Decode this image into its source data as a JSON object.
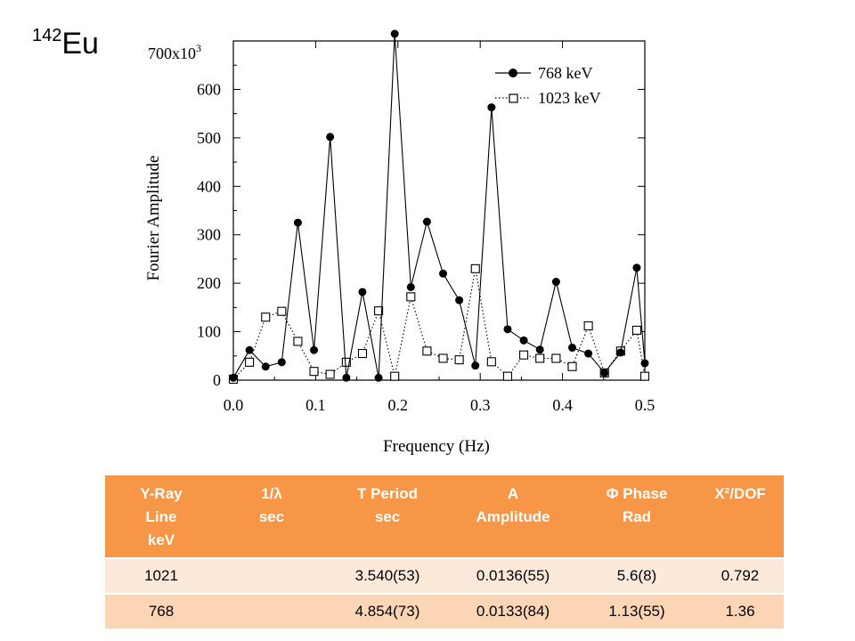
{
  "isotope": {
    "mass": "142",
    "symbol": "Eu"
  },
  "chart_data": {
    "type": "line",
    "xlabel": "Frequency (Hz)",
    "ylabel": "Fourier Amplitude",
    "y_multiplier": "x10",
    "y_multiplier_exp": "3",
    "xlim": [
      0.0,
      0.5
    ],
    "ylim": [
      0,
      700
    ],
    "x_ticks": [
      "0.0",
      "0.1",
      "0.2",
      "0.3",
      "0.4",
      "0.5"
    ],
    "y_ticks": [
      "0",
      "100",
      "200",
      "300",
      "400",
      "500",
      "600",
      "700"
    ],
    "legend_position": "top-right",
    "series": [
      {
        "name": "768 keV",
        "marker": "filled-circle",
        "line": "solid",
        "x": [
          0.0,
          0.0196,
          0.0392,
          0.0588,
          0.0784,
          0.098,
          0.1176,
          0.1373,
          0.1569,
          0.1765,
          0.1961,
          0.2157,
          0.2353,
          0.2549,
          0.2745,
          0.2941,
          0.3137,
          0.3333,
          0.3529,
          0.3725,
          0.3922,
          0.4118,
          0.4314,
          0.451,
          0.4706,
          0.4902,
          0.5
        ],
        "y": [
          5,
          62,
          28,
          37,
          325,
          62,
          502,
          5,
          182,
          5,
          715,
          192,
          327,
          220,
          165,
          30,
          563,
          105,
          82,
          63,
          203,
          67,
          55,
          15,
          57,
          232,
          35
        ]
      },
      {
        "name": "1023 keV",
        "marker": "open-square",
        "line": "dotted",
        "x": [
          0.0,
          0.0196,
          0.0392,
          0.0588,
          0.0784,
          0.098,
          0.1176,
          0.1373,
          0.1569,
          0.1765,
          0.1961,
          0.2157,
          0.2353,
          0.2549,
          0.2745,
          0.2941,
          0.3137,
          0.3333,
          0.3529,
          0.3725,
          0.3922,
          0.4118,
          0.4314,
          0.451,
          0.4706,
          0.4902,
          0.5
        ],
        "y": [
          2,
          37,
          130,
          142,
          80,
          18,
          12,
          37,
          55,
          143,
          8,
          172,
          60,
          45,
          42,
          230,
          38,
          8,
          52,
          45,
          45,
          28,
          112,
          15,
          60,
          103,
          8
        ]
      }
    ]
  },
  "table": {
    "headers": [
      [
        "Y-Ray",
        "Line",
        "keV"
      ],
      [
        "1/λ",
        "sec"
      ],
      [
        "T  Period",
        "sec"
      ],
      [
        "A",
        "Amplitude"
      ],
      [
        "Φ Phase",
        "Rad"
      ],
      [
        "X²/DOF"
      ]
    ],
    "rows": [
      [
        "1021",
        "",
        "3.540(53)",
        "0.0136(55)",
        "5.6(8)",
        "0.792"
      ],
      [
        "768",
        "",
        "4.854(73)",
        "0.0133(84)",
        "1.13(55)",
        "1.36"
      ]
    ]
  }
}
